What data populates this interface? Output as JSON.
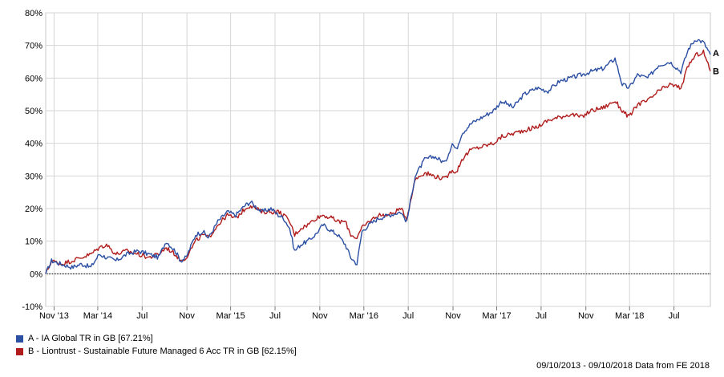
{
  "chart_data": {
    "type": "line",
    "yunit": "%",
    "ylim": [
      -10,
      80
    ],
    "yticks": [
      -10,
      0,
      10,
      20,
      30,
      40,
      50,
      60,
      70,
      80
    ],
    "xticks": [
      "Nov '13",
      "Mar '14",
      "Jul",
      "Nov",
      "Mar '15",
      "Jul",
      "Nov",
      "Mar '16",
      "Jul",
      "Nov",
      "Mar '17",
      "Jul",
      "Nov",
      "Mar '18",
      "Jul"
    ],
    "grid": true,
    "legend_position": "bottom-left",
    "series": [
      {
        "name": "A - IA Global TR in GB [67.21%]",
        "end_marker": "A",
        "color": "#2b4fa3",
        "x": [
          "2013-10-09",
          "2013-10-25",
          "2013-11-20",
          "2013-12-20",
          "2014-01-15",
          "2014-02-10",
          "2014-03-05",
          "2014-03-25",
          "2014-04-20",
          "2014-05-20",
          "2014-06-20",
          "2014-07-20",
          "2014-08-15",
          "2014-09-05",
          "2014-09-30",
          "2014-10-15",
          "2014-10-30",
          "2014-11-25",
          "2014-12-15",
          "2014-12-30",
          "2015-01-25",
          "2015-02-20",
          "2015-03-15",
          "2015-04-10",
          "2015-04-25",
          "2015-05-25",
          "2015-06-20",
          "2015-07-10",
          "2015-07-25",
          "2015-08-10",
          "2015-08-24",
          "2015-09-10",
          "2015-09-29",
          "2015-10-20",
          "2015-11-10",
          "2015-12-05",
          "2015-12-20",
          "2016-01-10",
          "2016-01-25",
          "2016-02-11",
          "2016-02-25",
          "2016-03-15",
          "2016-04-10",
          "2016-05-10",
          "2016-06-10",
          "2016-06-27",
          "2016-07-20",
          "2016-08-15",
          "2016-09-10",
          "2016-10-10",
          "2016-10-30",
          "2016-11-10",
          "2016-11-25",
          "2016-12-20",
          "2017-01-20",
          "2017-02-20",
          "2017-03-15",
          "2017-04-15",
          "2017-05-15",
          "2017-06-20",
          "2017-07-20",
          "2017-08-20",
          "2017-09-20",
          "2017-10-20",
          "2017-11-15",
          "2017-12-20",
          "2018-01-20",
          "2018-02-09",
          "2018-02-28",
          "2018-03-23",
          "2018-04-20",
          "2018-05-20",
          "2018-06-20",
          "2018-07-20",
          "2018-08-10",
          "2018-08-30",
          "2018-09-20",
          "2018-10-09"
        ],
        "y": [
          0,
          4,
          3,
          2,
          3,
          2,
          6,
          5,
          4,
          6,
          7,
          6,
          5,
          10,
          7,
          4,
          5,
          12,
          13,
          11,
          16,
          19,
          18,
          21,
          22,
          19,
          20,
          18,
          17,
          14,
          7,
          9,
          10,
          12,
          15,
          13,
          12,
          9,
          5,
          3,
          13,
          15,
          17,
          18,
          19,
          16,
          30,
          35,
          36,
          34,
          40,
          38,
          43,
          46,
          48,
          50,
          53,
          51,
          55,
          57,
          56,
          59,
          60,
          61,
          62,
          63,
          66,
          58,
          57,
          61,
          60,
          64,
          65,
          62,
          69,
          72,
          71,
          67.21
        ],
        "xlabel": "",
        "ylabel": ""
      },
      {
        "name": "B - Liontrust - Sustainable Future Managed 6 Acc TR in GB [62.15%]",
        "end_marker": "B",
        "color": "#b01c1c",
        "x": [
          "2013-10-09",
          "2013-10-25",
          "2013-11-20",
          "2013-12-20",
          "2014-01-15",
          "2014-02-10",
          "2014-03-05",
          "2014-03-25",
          "2014-04-20",
          "2014-05-20",
          "2014-06-20",
          "2014-07-20",
          "2014-08-15",
          "2014-09-05",
          "2014-09-30",
          "2014-10-15",
          "2014-10-30",
          "2014-11-25",
          "2014-12-15",
          "2014-12-30",
          "2015-01-25",
          "2015-02-20",
          "2015-03-15",
          "2015-04-10",
          "2015-04-25",
          "2015-05-25",
          "2015-06-20",
          "2015-07-10",
          "2015-07-25",
          "2015-08-10",
          "2015-08-24",
          "2015-09-10",
          "2015-09-29",
          "2015-10-20",
          "2015-11-10",
          "2015-12-05",
          "2015-12-20",
          "2016-01-10",
          "2016-01-25",
          "2016-02-11",
          "2016-02-25",
          "2016-03-15",
          "2016-04-10",
          "2016-05-10",
          "2016-06-10",
          "2016-06-27",
          "2016-07-20",
          "2016-08-15",
          "2016-09-10",
          "2016-10-10",
          "2016-10-30",
          "2016-11-10",
          "2016-11-25",
          "2016-12-20",
          "2017-01-20",
          "2017-02-20",
          "2017-03-15",
          "2017-04-15",
          "2017-05-15",
          "2017-06-20",
          "2017-07-20",
          "2017-08-20",
          "2017-09-20",
          "2017-10-20",
          "2017-11-15",
          "2017-12-20",
          "2018-01-20",
          "2018-02-09",
          "2018-02-28",
          "2018-03-23",
          "2018-04-20",
          "2018-05-20",
          "2018-06-20",
          "2018-07-20",
          "2018-08-10",
          "2018-08-30",
          "2018-09-20",
          "2018-10-09"
        ],
        "y": [
          0,
          4,
          3,
          4,
          5,
          6,
          8,
          9,
          6,
          7,
          6,
          5,
          6,
          8,
          6,
          4,
          5,
          10,
          12,
          11,
          15,
          18,
          17,
          20,
          21,
          19,
          19,
          19,
          18,
          16,
          12,
          14,
          15,
          17,
          18,
          17,
          16,
          16,
          12,
          11,
          14,
          16,
          18,
          18,
          20,
          17,
          29,
          31,
          30,
          29,
          32,
          31,
          35,
          38,
          39,
          40,
          42,
          43,
          44,
          45,
          47,
          48,
          49,
          48,
          50,
          51,
          53,
          50,
          48,
          52,
          53,
          56,
          58,
          57,
          64,
          67,
          68,
          62.15
        ],
        "xlabel": "",
        "ylabel": ""
      }
    ]
  },
  "footer": {
    "date_range": "09/10/2013 - 09/10/2018 Data from FE 2018"
  }
}
